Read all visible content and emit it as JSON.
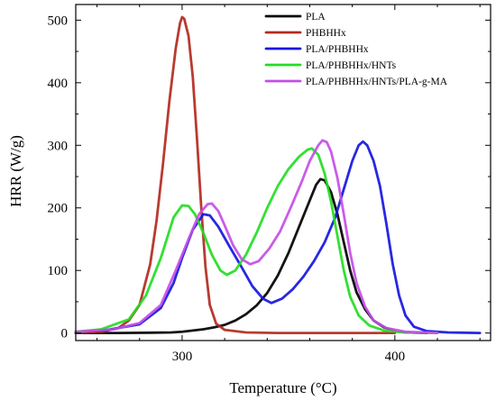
{
  "chart_data": {
    "type": "line",
    "title": "",
    "xlabel": "Temperature (°C)",
    "ylabel": "HRR (W/g)",
    "xlim": [
      250,
      445
    ],
    "ylim": [
      -12,
      525
    ],
    "x_ticks": [
      300,
      400
    ],
    "y_ticks": [
      0,
      100,
      200,
      300,
      400,
      500
    ],
    "grid": false,
    "legend": "top-right",
    "series": [
      {
        "name": "PLA",
        "color": "#000000",
        "points": [
          [
            250,
            0
          ],
          [
            270,
            0
          ],
          [
            285,
            0.5
          ],
          [
            295,
            1
          ],
          [
            300,
            2
          ],
          [
            305,
            4
          ],
          [
            310,
            6
          ],
          [
            315,
            9
          ],
          [
            320,
            13
          ],
          [
            325,
            20
          ],
          [
            330,
            30
          ],
          [
            335,
            44
          ],
          [
            340,
            64
          ],
          [
            345,
            92
          ],
          [
            350,
            128
          ],
          [
            355,
            170
          ],
          [
            360,
            212
          ],
          [
            363,
            237
          ],
          [
            365,
            246
          ],
          [
            367,
            244
          ],
          [
            370,
            225
          ],
          [
            373,
            190
          ],
          [
            376,
            145
          ],
          [
            379,
            100
          ],
          [
            382,
            65
          ],
          [
            386,
            38
          ],
          [
            390,
            20
          ],
          [
            395,
            9
          ],
          [
            400,
            3
          ],
          [
            405,
            1
          ],
          [
            415,
            0
          ]
        ]
      },
      {
        "name": "PHBHHx",
        "color": "#b22a1e",
        "points": [
          [
            250,
            0
          ],
          [
            262,
            2
          ],
          [
            270,
            8
          ],
          [
            275,
            20
          ],
          [
            280,
            45
          ],
          [
            285,
            110
          ],
          [
            288,
            180
          ],
          [
            291,
            270
          ],
          [
            294,
            370
          ],
          [
            297,
            455
          ],
          [
            299,
            495
          ],
          [
            300,
            505
          ],
          [
            301,
            502
          ],
          [
            303,
            475
          ],
          [
            305,
            410
          ],
          [
            307,
            310
          ],
          [
            309,
            200
          ],
          [
            311,
            105
          ],
          [
            313,
            45
          ],
          [
            316,
            15
          ],
          [
            320,
            5
          ],
          [
            330,
            1
          ],
          [
            345,
            0
          ],
          [
            400,
            0
          ]
        ]
      },
      {
        "name": "PLA/PHBHHx",
        "color": "#1616e0",
        "points": [
          [
            250,
            2
          ],
          [
            265,
            5
          ],
          [
            280,
            14
          ],
          [
            290,
            40
          ],
          [
            296,
            80
          ],
          [
            300,
            120
          ],
          [
            305,
            165
          ],
          [
            310,
            190
          ],
          [
            313,
            188
          ],
          [
            317,
            170
          ],
          [
            322,
            140
          ],
          [
            328,
            105
          ],
          [
            333,
            75
          ],
          [
            338,
            55
          ],
          [
            342,
            48
          ],
          [
            347,
            55
          ],
          [
            352,
            70
          ],
          [
            357,
            90
          ],
          [
            362,
            115
          ],
          [
            367,
            145
          ],
          [
            372,
            185
          ],
          [
            376,
            230
          ],
          [
            380,
            275
          ],
          [
            383,
            300
          ],
          [
            385,
            306
          ],
          [
            387,
            300
          ],
          [
            390,
            275
          ],
          [
            393,
            235
          ],
          [
            396,
            175
          ],
          [
            399,
            110
          ],
          [
            402,
            60
          ],
          [
            405,
            28
          ],
          [
            409,
            10
          ],
          [
            415,
            3
          ],
          [
            425,
            1
          ],
          [
            440,
            0
          ]
        ]
      },
      {
        "name": "PLA/PHBHHx/HNTs",
        "color": "#22dd22",
        "points": [
          [
            250,
            2
          ],
          [
            262,
            6
          ],
          [
            275,
            22
          ],
          [
            283,
            60
          ],
          [
            290,
            120
          ],
          [
            296,
            185
          ],
          [
            300,
            204
          ],
          [
            303,
            203
          ],
          [
            306,
            190
          ],
          [
            310,
            160
          ],
          [
            314,
            125
          ],
          [
            318,
            100
          ],
          [
            321,
            93
          ],
          [
            325,
            100
          ],
          [
            330,
            125
          ],
          [
            335,
            160
          ],
          [
            340,
            200
          ],
          [
            345,
            235
          ],
          [
            350,
            262
          ],
          [
            355,
            282
          ],
          [
            359,
            293
          ],
          [
            361,
            295
          ],
          [
            364,
            285
          ],
          [
            367,
            255
          ],
          [
            370,
            210
          ],
          [
            373,
            155
          ],
          [
            376,
            100
          ],
          [
            379,
            58
          ],
          [
            383,
            28
          ],
          [
            388,
            12
          ],
          [
            395,
            4
          ],
          [
            405,
            1
          ],
          [
            420,
            0
          ]
        ]
      },
      {
        "name": "PLA/PHBHHx/HNTs/PLA-g-MA",
        "color": "#c44ee8",
        "points": [
          [
            250,
            2
          ],
          [
            268,
            6
          ],
          [
            280,
            16
          ],
          [
            290,
            45
          ],
          [
            297,
            100
          ],
          [
            303,
            150
          ],
          [
            308,
            190
          ],
          [
            312,
            206
          ],
          [
            314,
            207
          ],
          [
            317,
            195
          ],
          [
            320,
            172
          ],
          [
            324,
            140
          ],
          [
            328,
            118
          ],
          [
            332,
            110
          ],
          [
            336,
            115
          ],
          [
            341,
            135
          ],
          [
            346,
            162
          ],
          [
            351,
            200
          ],
          [
            356,
            240
          ],
          [
            360,
            275
          ],
          [
            364,
            300
          ],
          [
            366,
            308
          ],
          [
            368,
            305
          ],
          [
            370,
            290
          ],
          [
            373,
            248
          ],
          [
            376,
            190
          ],
          [
            379,
            128
          ],
          [
            382,
            80
          ],
          [
            386,
            42
          ],
          [
            390,
            20
          ],
          [
            396,
            8
          ],
          [
            405,
            2
          ],
          [
            420,
            0
          ]
        ]
      }
    ]
  }
}
